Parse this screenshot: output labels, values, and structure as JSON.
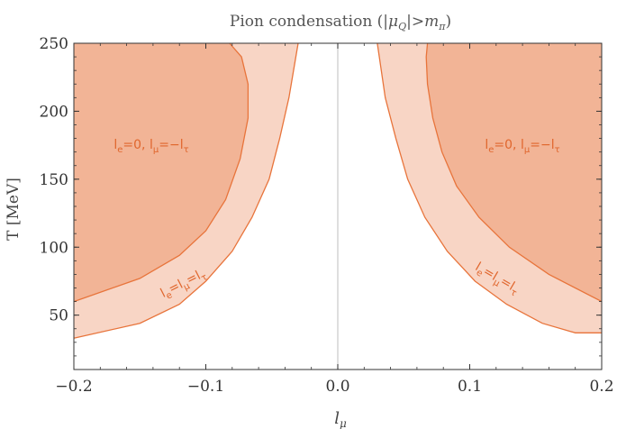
{
  "chart_data": {
    "type": "area",
    "title": "Pion condensation (|μ_Q|>m_π)",
    "xlabel": "l_μ",
    "ylabel": "T [MeV]",
    "xlim": [
      -0.2,
      0.2
    ],
    "ylim": [
      10,
      250
    ],
    "xticks": [
      -0.2,
      -0.1,
      0.0,
      0.1,
      0.2
    ],
    "xtick_labels": [
      "−0.2",
      "−0.1",
      "0.0",
      "0.1",
      "0.2"
    ],
    "yticks": [
      50,
      100,
      150,
      200,
      250
    ],
    "ytick_labels": [
      "50",
      "100",
      "150",
      "200",
      "250"
    ],
    "grid": false,
    "vertical_reference_line_x": 0.0,
    "colors": {
      "outer_fill": "#f8d5c5",
      "inner_fill": "#f2b496",
      "boundary": "#e8743b",
      "label": "#e0662d",
      "ref_line": "#c8c8c8"
    },
    "series": [
      {
        "name": "l_e=l_μ=l_τ",
        "region": "outer",
        "left_boundary": [
          [
            -0.2,
            33
          ],
          [
            -0.15,
            44
          ],
          [
            -0.12,
            58
          ],
          [
            -0.1,
            75
          ],
          [
            -0.08,
            97
          ],
          [
            -0.065,
            122
          ],
          [
            -0.052,
            150
          ],
          [
            -0.044,
            180
          ],
          [
            -0.037,
            210
          ],
          [
            -0.03,
            250
          ]
        ],
        "right_boundary": [
          [
            0.03,
            250
          ],
          [
            0.036,
            210
          ],
          [
            0.044,
            180
          ],
          [
            0.053,
            150
          ],
          [
            0.066,
            122
          ],
          [
            0.083,
            97
          ],
          [
            0.104,
            75
          ],
          [
            0.128,
            58
          ],
          [
            0.155,
            44
          ],
          [
            0.18,
            37
          ],
          [
            0.2,
            37
          ]
        ]
      },
      {
        "name": "l_e=0, l_μ=−l_τ",
        "region": "inner",
        "left_boundary": [
          [
            -0.2,
            60
          ],
          [
            -0.15,
            77
          ],
          [
            -0.12,
            94
          ],
          [
            -0.1,
            112
          ],
          [
            -0.085,
            135
          ],
          [
            -0.074,
            165
          ],
          [
            -0.068,
            195
          ],
          [
            -0.068,
            220
          ],
          [
            -0.073,
            240
          ],
          [
            -0.082,
            250
          ]
        ],
        "right_boundary": [
          [
            0.068,
            250
          ],
          [
            0.067,
            240
          ],
          [
            0.068,
            220
          ],
          [
            0.072,
            195
          ],
          [
            0.079,
            170
          ],
          [
            0.09,
            145
          ],
          [
            0.107,
            122
          ],
          [
            0.13,
            100
          ],
          [
            0.16,
            80
          ],
          [
            0.2,
            60
          ]
        ]
      }
    ],
    "annotations": {
      "inner_left": "l_e=0, l_μ=−l_τ",
      "inner_right": "l_e=0, l_μ=−l_τ",
      "outer_left": "l_e=l_μ=l_τ",
      "outer_right": "l_e=l_μ=l_τ"
    }
  }
}
